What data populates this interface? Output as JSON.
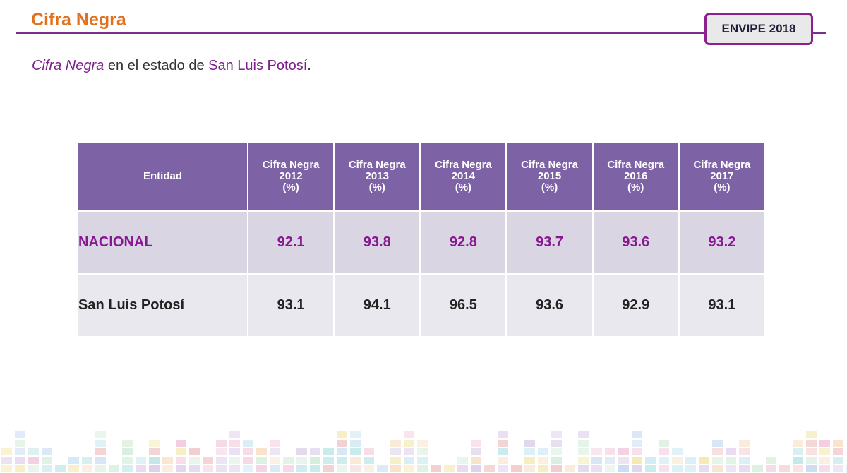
{
  "header": {
    "title": "Cifra Negra",
    "badge": "ENVIPE 2018"
  },
  "subtitle": {
    "italic": "Cifra Negra",
    "middle": " en el estado de ",
    "place": "San Luis Potosí",
    "end": "."
  },
  "table": {
    "header_first": "Entidad",
    "columns": [
      {
        "l1": "Cifra Negra",
        "l2": "2012",
        "l3": "(%)"
      },
      {
        "l1": "Cifra Negra",
        "l2": "2013",
        "l3": "(%)"
      },
      {
        "l1": "Cifra Negra",
        "l2": "2014",
        "l3": "(%)"
      },
      {
        "l1": "Cifra Negra",
        "l2": "2015",
        "l3": "(%)"
      },
      {
        "l1": "Cifra Negra",
        "l2": "2016",
        "l3": "(%)"
      },
      {
        "l1": "Cifra Negra",
        "l2": "2017",
        "l3": "(%)"
      }
    ],
    "rows": [
      {
        "entity": "NACIONAL",
        "values": [
          "92.1",
          "93.8",
          "92.8",
          "93.7",
          "93.6",
          "93.2"
        ]
      },
      {
        "entity": "San Luis Potosí",
        "values": [
          "93.1",
          "94.1",
          "96.5",
          "93.6",
          "92.9",
          "93.1"
        ]
      }
    ]
  },
  "colors": {
    "title": "#e2711d",
    "accent": "#7e1f8e",
    "table_header": "#7e62a6"
  }
}
